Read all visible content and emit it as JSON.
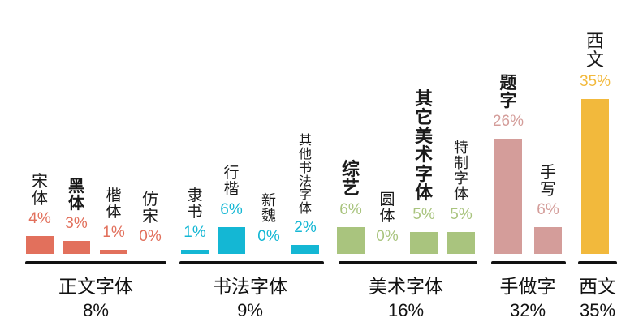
{
  "chart_data": {
    "type": "bar",
    "xlabel": "",
    "ylabel": "",
    "ylim": [
      0,
      36
    ],
    "grid": false,
    "legend": "none",
    "groups": [
      {
        "name": "正文字体",
        "total": "8%",
        "color": "#e2705c",
        "bars": [
          {
            "label": "宋体",
            "value": 4,
            "text": "4%"
          },
          {
            "label": "黑体",
            "value": 3,
            "text": "3%"
          },
          {
            "label": "楷体",
            "value": 1,
            "text": "1%"
          },
          {
            "label": "仿宋",
            "value": 0,
            "text": "0%"
          }
        ]
      },
      {
        "name": "书法字体",
        "total": "9%",
        "color": "#14b7d4",
        "bars": [
          {
            "label": "隶书",
            "value": 1,
            "text": "1%"
          },
          {
            "label": "行楷",
            "value": 6,
            "text": "6%"
          },
          {
            "label": "新魏",
            "value": 0,
            "text": "0%"
          },
          {
            "label": "其他书法字体",
            "value": 2,
            "text": "2%"
          }
        ]
      },
      {
        "name": "美术字体",
        "total": "16%",
        "color": "#a9c47e",
        "bars": [
          {
            "label": "综艺",
            "value": 6,
            "text": "6%"
          },
          {
            "label": "圆体",
            "value": 0,
            "text": "0%"
          },
          {
            "label": "其它美术字体",
            "value": 5,
            "text": "5%"
          },
          {
            "label": "特制字体",
            "value": 5,
            "text": "5%"
          }
        ]
      },
      {
        "name": "手做字",
        "total": "32%",
        "color": "#d49d9a",
        "bars": [
          {
            "label": "题字",
            "value": 26,
            "text": "26%"
          },
          {
            "label": "手写",
            "value": 6,
            "text": "6%"
          }
        ]
      },
      {
        "name": "西文",
        "total": "35%",
        "color": "#f2b93c",
        "bars": [
          {
            "label": "西文",
            "value": 35,
            "text": "35%"
          }
        ]
      }
    ]
  }
}
